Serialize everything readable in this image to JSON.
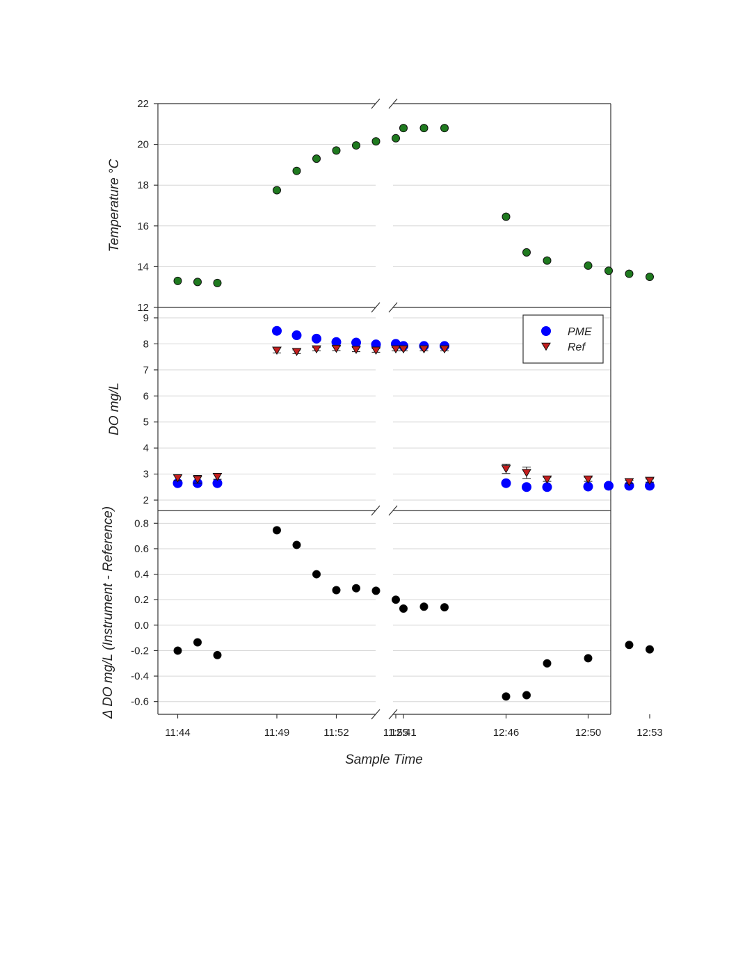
{
  "chart_data": {
    "type": "scatter",
    "xlabel": "Sample Time",
    "x_segments": [
      {
        "tick_labels": [
          "11:44",
          "11:49",
          "11:52",
          "11:55"
        ],
        "times": [
          "11:44",
          "11:45",
          "11:46",
          "11:47",
          "11:48",
          "11:49",
          "11:50",
          "11:51",
          "11:52",
          "11:53",
          "11:54",
          "11:55"
        ]
      },
      {
        "tick_labels": [
          "12:41",
          "12:46",
          "12:50",
          "12:53"
        ],
        "times": [
          "12:41",
          "12:42",
          "12:43",
          "12:44",
          "12:45",
          "12:46",
          "12:47",
          "12:48",
          "12:49",
          "12:50",
          "12:51",
          "12:52",
          "12:53"
        ]
      }
    ],
    "panels": [
      {
        "ylabel": "Temperature °C",
        "ylim": [
          12,
          22
        ],
        "yticks": [
          "12",
          "14",
          "16",
          "18",
          "20",
          "22"
        ],
        "grid": true,
        "series": [
          {
            "color": "#1f7a1f",
            "marker": "circle",
            "points": [
              {
                "seg": 0,
                "x": "11:44",
                "y": 13.3
              },
              {
                "seg": 0,
                "x": "11:45",
                "y": 13.25
              },
              {
                "seg": 0,
                "x": "11:46",
                "y": 13.2
              },
              {
                "seg": 0,
                "x": "11:49",
                "y": 17.75
              },
              {
                "seg": 0,
                "x": "11:50",
                "y": 18.7
              },
              {
                "seg": 0,
                "x": "11:51",
                "y": 19.3
              },
              {
                "seg": 0,
                "x": "11:52",
                "y": 19.7
              },
              {
                "seg": 0,
                "x": "11:53",
                "y": 19.95
              },
              {
                "seg": 0,
                "x": "11:54",
                "y": 20.15
              },
              {
                "seg": 0,
                "x": "11:55",
                "y": 20.3
              },
              {
                "seg": 1,
                "x": "12:41",
                "y": 20.8
              },
              {
                "seg": 1,
                "x": "12:42",
                "y": 20.8
              },
              {
                "seg": 1,
                "x": "12:43",
                "y": 20.8
              },
              {
                "seg": 1,
                "x": "12:46",
                "y": 16.45
              },
              {
                "seg": 1,
                "x": "12:47",
                "y": 14.7
              },
              {
                "seg": 1,
                "x": "12:48",
                "y": 14.3
              },
              {
                "seg": 1,
                "x": "12:50",
                "y": 14.05
              },
              {
                "seg": 1,
                "x": "12:51",
                "y": 13.8
              },
              {
                "seg": 1,
                "x": "12:52",
                "y": 13.65
              },
              {
                "seg": 1,
                "x": "12:53",
                "y": 13.5
              }
            ]
          }
        ]
      },
      {
        "ylabel": "DO mg/L",
        "ylim": [
          1.6,
          9.4
        ],
        "yticks": [
          "2",
          "3",
          "4",
          "5",
          "6",
          "7",
          "8",
          "9"
        ],
        "grid": true,
        "legend": {
          "position": "top-right"
        },
        "series": [
          {
            "name": "PME",
            "color": "#0000ff",
            "marker": "circle",
            "points": [
              {
                "seg": 0,
                "x": "11:44",
                "y": 2.65
              },
              {
                "seg": 0,
                "x": "11:45",
                "y": 2.65
              },
              {
                "seg": 0,
                "x": "11:46",
                "y": 2.65
              },
              {
                "seg": 0,
                "x": "11:49",
                "y": 8.5
              },
              {
                "seg": 0,
                "x": "11:50",
                "y": 8.33
              },
              {
                "seg": 0,
                "x": "11:51",
                "y": 8.2
              },
              {
                "seg": 0,
                "x": "11:52",
                "y": 8.07
              },
              {
                "seg": 0,
                "x": "11:53",
                "y": 8.05
              },
              {
                "seg": 0,
                "x": "11:54",
                "y": 7.98
              },
              {
                "seg": 0,
                "x": "11:55",
                "y": 8.0
              },
              {
                "seg": 1,
                "x": "12:41",
                "y": 7.92
              },
              {
                "seg": 1,
                "x": "12:42",
                "y": 7.92
              },
              {
                "seg": 1,
                "x": "12:43",
                "y": 7.92
              },
              {
                "seg": 1,
                "x": "12:46",
                "y": 2.65
              },
              {
                "seg": 1,
                "x": "12:47",
                "y": 2.5
              },
              {
                "seg": 1,
                "x": "12:48",
                "y": 2.5
              },
              {
                "seg": 1,
                "x": "12:50",
                "y": 2.52
              },
              {
                "seg": 1,
                "x": "12:51",
                "y": 2.55
              },
              {
                "seg": 1,
                "x": "12:52",
                "y": 2.55
              },
              {
                "seg": 1,
                "x": "12:53",
                "y": 2.55
              }
            ]
          },
          {
            "name": "Ref",
            "color": "#c41e1e",
            "marker": "triangle-down",
            "error_bars": true,
            "points": [
              {
                "seg": 0,
                "x": "11:44",
                "y": 2.85,
                "err": 0.1
              },
              {
                "seg": 0,
                "x": "11:45",
                "y": 2.8,
                "err": 0.15
              },
              {
                "seg": 0,
                "x": "11:46",
                "y": 2.9,
                "err": 0.1
              },
              {
                "seg": 0,
                "x": "11:49",
                "y": 7.75,
                "err": 0.1
              },
              {
                "seg": 0,
                "x": "11:50",
                "y": 7.7,
                "err": 0.07
              },
              {
                "seg": 0,
                "x": "11:51",
                "y": 7.8,
                "err": 0.07
              },
              {
                "seg": 0,
                "x": "11:52",
                "y": 7.82,
                "err": 0.08
              },
              {
                "seg": 0,
                "x": "11:53",
                "y": 7.78,
                "err": 0.08
              },
              {
                "seg": 0,
                "x": "11:54",
                "y": 7.75,
                "err": 0.07
              },
              {
                "seg": 0,
                "x": "11:55",
                "y": 7.8,
                "err": 0.07
              },
              {
                "seg": 1,
                "x": "12:41",
                "y": 7.8,
                "err": 0.07
              },
              {
                "seg": 1,
                "x": "12:42",
                "y": 7.8,
                "err": 0.07
              },
              {
                "seg": 1,
                "x": "12:43",
                "y": 7.8,
                "err": 0.07
              },
              {
                "seg": 1,
                "x": "12:46",
                "y": 3.2,
                "err": 0.18
              },
              {
                "seg": 1,
                "x": "12:47",
                "y": 3.05,
                "err": 0.22
              },
              {
                "seg": 1,
                "x": "12:48",
                "y": 2.8,
                "err": 0.08
              },
              {
                "seg": 1,
                "x": "12:50",
                "y": 2.8,
                "err": 0.08
              },
              {
                "seg": 1,
                "x": "12:52",
                "y": 2.7,
                "err": 0.06
              },
              {
                "seg": 1,
                "x": "12:53",
                "y": 2.75,
                "err": 0.06
              }
            ]
          }
        ]
      },
      {
        "ylabel": "Δ DO mg/L  (Instrument - Reference)",
        "ylim": [
          -0.7,
          0.9
        ],
        "yticks": [
          "-0.6",
          "-0.4",
          "-0.2",
          "0.0",
          "0.2",
          "0.4",
          "0.6",
          "0.8"
        ],
        "grid": true,
        "series": [
          {
            "color": "#000000",
            "marker": "circle",
            "points": [
              {
                "seg": 0,
                "x": "11:44",
                "y": -0.2
              },
              {
                "seg": 0,
                "x": "11:45",
                "y": -0.135
              },
              {
                "seg": 0,
                "x": "11:46",
                "y": -0.235
              },
              {
                "seg": 0,
                "x": "11:49",
                "y": 0.745
              },
              {
                "seg": 0,
                "x": "11:50",
                "y": 0.63
              },
              {
                "seg": 0,
                "x": "11:51",
                "y": 0.4
              },
              {
                "seg": 0,
                "x": "11:52",
                "y": 0.275
              },
              {
                "seg": 0,
                "x": "11:53",
                "y": 0.29
              },
              {
                "seg": 0,
                "x": "11:54",
                "y": 0.27
              },
              {
                "seg": 0,
                "x": "11:55",
                "y": 0.2
              },
              {
                "seg": 1,
                "x": "12:41",
                "y": 0.13
              },
              {
                "seg": 1,
                "x": "12:42",
                "y": 0.145
              },
              {
                "seg": 1,
                "x": "12:43",
                "y": 0.14
              },
              {
                "seg": 1,
                "x": "12:46",
                "y": -0.56
              },
              {
                "seg": 1,
                "x": "12:47",
                "y": -0.55
              },
              {
                "seg": 1,
                "x": "12:48",
                "y": -0.3
              },
              {
                "seg": 1,
                "x": "12:50",
                "y": -0.26
              },
              {
                "seg": 1,
                "x": "12:52",
                "y": -0.155
              },
              {
                "seg": 1,
                "x": "12:53",
                "y": -0.19
              }
            ]
          }
        ]
      }
    ]
  }
}
